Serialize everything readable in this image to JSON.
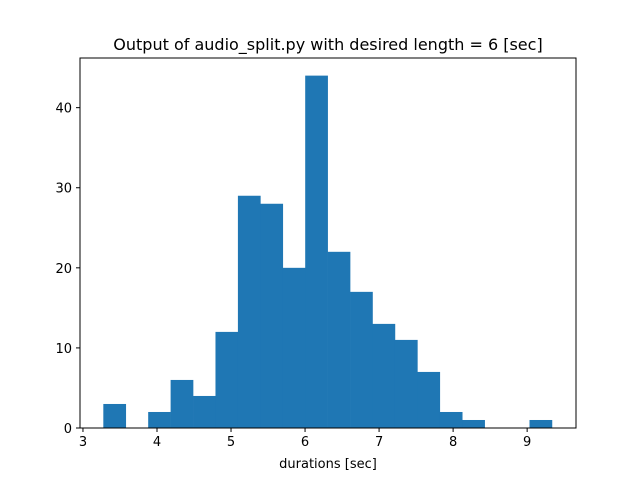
{
  "chart_data": {
    "type": "bar",
    "title": "Output of audio_split.py with desired length = 6 [sec]",
    "xlabel": "durations [sec]",
    "ylabel": "",
    "xlim": [
      2.96,
      9.66
    ],
    "ylim": [
      0,
      46.2
    ],
    "grid": false,
    "bin_edges": [
      3.275,
      3.578,
      3.881,
      4.184,
      4.487,
      4.79,
      5.093,
      5.396,
      5.699,
      6.002,
      6.305,
      6.608,
      6.911,
      7.214,
      7.517,
      7.82,
      8.123,
      8.426,
      8.729,
      9.032,
      9.335
    ],
    "counts": [
      3,
      0,
      2,
      6,
      4,
      12,
      29,
      28,
      20,
      44,
      22,
      17,
      13,
      11,
      7,
      2,
      1,
      0,
      0,
      1
    ],
    "bar_color": "#1f77b4",
    "x_ticks": [
      3,
      4,
      5,
      6,
      7,
      8,
      9
    ],
    "y_ticks": [
      0,
      10,
      20,
      30,
      40
    ]
  }
}
